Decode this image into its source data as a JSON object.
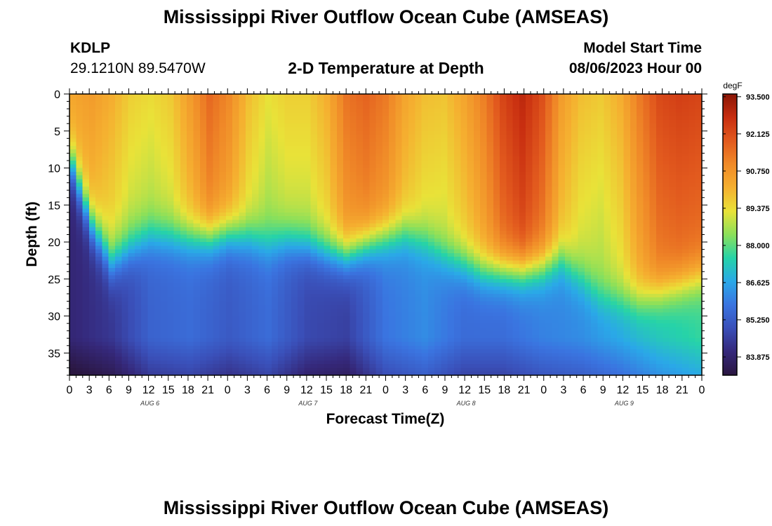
{
  "page": {
    "title": "Mississippi River Outflow Ocean Cube (AMSEAS)",
    "title_repeat": "Mississippi River Outflow Ocean Cube (AMSEAS)",
    "station": "KDLP",
    "coords": "29.1210N  89.5470W",
    "subtitle": "2-D Temperature at Depth",
    "model_label": "Model Start Time",
    "model_time": "08/06/2023 Hour 00"
  },
  "chart_data": {
    "type": "heatmap",
    "title": "2-D Temperature at Depth",
    "xlabel": "Forecast Time(Z)",
    "ylabel": "Depth (ft)",
    "x_range_hours": [
      0,
      96
    ],
    "x_tick_labels": [
      "0",
      "3",
      "6",
      "9",
      "12",
      "15",
      "18",
      "21",
      "0",
      "3",
      "6",
      "9",
      "12",
      "15",
      "18",
      "21",
      "0",
      "3",
      "6",
      "9",
      "12",
      "15",
      "18",
      "21",
      "0",
      "3",
      "6",
      "9",
      "12",
      "15",
      "18",
      "21",
      "0"
    ],
    "date_labels": [
      {
        "label": "AUG 6",
        "hour": 12
      },
      {
        "label": "AUG 7",
        "hour": 36
      },
      {
        "label": "AUG 8",
        "hour": 60
      },
      {
        "label": "AUG 9",
        "hour": 84
      }
    ],
    "y_range_ft": [
      0,
      38
    ],
    "y_ticks": [
      0,
      5,
      10,
      15,
      20,
      25,
      30,
      35
    ],
    "colorbar": {
      "unit": "degF",
      "min": 83.2,
      "max": 93.6,
      "tick_values": [
        93.5,
        92.125,
        90.75,
        89.375,
        88.0,
        86.625,
        85.25,
        83.875
      ],
      "tick_labels": [
        "93.500",
        "92.125",
        "90.750",
        "89.375",
        "88.000",
        "86.625",
        "85.250",
        "83.875"
      ],
      "stops": [
        "#2a1640",
        "#35287a",
        "#3a4fb8",
        "#3a74e0",
        "#2aa8e8",
        "#26d3a8",
        "#8be05a",
        "#e9e238",
        "#f5b030",
        "#f08a28",
        "#e25a1e",
        "#c82e10",
        "#8a1606"
      ]
    },
    "thermocline_depth_ft": {
      "hours": [
        0,
        3,
        6,
        9,
        12,
        15,
        18,
        21,
        24,
        27,
        30,
        33,
        36,
        39,
        42,
        45,
        48,
        51,
        54,
        57,
        60,
        63,
        66,
        69,
        72,
        75,
        78,
        81,
        84,
        87,
        90,
        93,
        96
      ],
      "depth": [
        10,
        18,
        23,
        21,
        19.5,
        19.5,
        19.5,
        19.5,
        19,
        19.5,
        20.5,
        20,
        20.5,
        21.5,
        22,
        20.5,
        19.5,
        19,
        20,
        22,
        23,
        24,
        24,
        24,
        23.5,
        22.5,
        25,
        27.5,
        28,
        28,
        27,
        26,
        25
      ]
    },
    "surface_temp_degF": {
      "hours": [
        0,
        3,
        6,
        9,
        12,
        15,
        18,
        21,
        24,
        27,
        30,
        33,
        36,
        39,
        42,
        45,
        48,
        51,
        54,
        57,
        60,
        63,
        66,
        69,
        72,
        75,
        78,
        81,
        84,
        87,
        90,
        93,
        96
      ],
      "value": [
        90.4,
        90.6,
        90.2,
        89.6,
        89.4,
        89.7,
        90.6,
        91.6,
        91.0,
        89.9,
        89.3,
        89.6,
        89.6,
        90.2,
        91.4,
        91.7,
        91.3,
        90.4,
        89.9,
        89.8,
        90.4,
        91.2,
        92.3,
        92.9,
        92.1,
        90.6,
        89.9,
        89.7,
        90.2,
        91.3,
        92.2,
        92.4,
        92.3
      ]
    },
    "deep_temp_degF": {
      "hours": [
        0,
        6,
        12,
        18,
        24,
        30,
        36,
        42,
        48,
        54,
        60,
        66,
        72,
        78,
        84,
        90,
        96
      ],
      "value": [
        84.0,
        84.4,
        85.4,
        85.6,
        85.2,
        85.6,
        84.8,
        84.6,
        85.8,
        86.2,
        85.6,
        85.6,
        86.0,
        86.2,
        86.6,
        87.2,
        87.6
      ]
    }
  }
}
